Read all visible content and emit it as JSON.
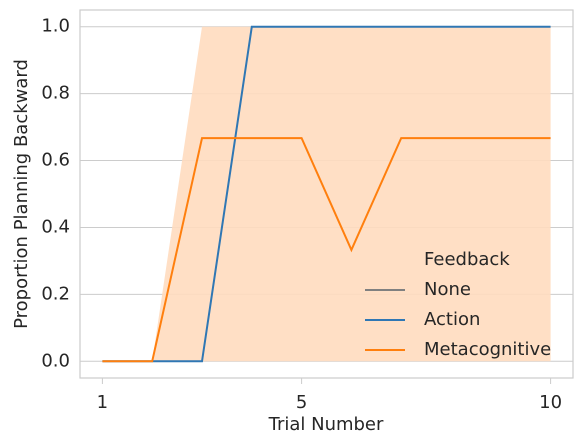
{
  "chart_data": {
    "type": "line",
    "x_label": "Trial Number",
    "y_label": "Proportion Planning Backward",
    "x": [
      1,
      2,
      3,
      4,
      5,
      6,
      7,
      8,
      9,
      10
    ],
    "xlim": [
      0.55,
      10.45
    ],
    "xticks": [
      1,
      5,
      10
    ],
    "ylim": [
      -0.05,
      1.05
    ],
    "yticks": [
      {
        "value": 0,
        "label": "0.0"
      },
      {
        "value": 0.2,
        "label": "0.2"
      },
      {
        "value": 0.4,
        "label": "0.4"
      },
      {
        "value": 0.6,
        "label": "0.6"
      },
      {
        "value": 0.8,
        "label": "0.8"
      },
      {
        "value": 1,
        "label": "1.0"
      }
    ],
    "grid": true,
    "legend_title": "Feedback",
    "legend_position": "lower right",
    "series": [
      {
        "name": "None",
        "color": "#808080",
        "values": [
          null,
          null,
          null,
          null,
          null,
          null,
          null,
          null,
          null,
          null
        ]
      },
      {
        "name": "Action",
        "color": "#2f77b4",
        "values": [
          0,
          0,
          0,
          1,
          1,
          1,
          1,
          1,
          1,
          1
        ]
      },
      {
        "name": "Metacognitive",
        "color": "#ff7f0e",
        "band_color": "#ffdcbf",
        "values": [
          0,
          0,
          0.667,
          0.667,
          0.667,
          0.333,
          0.667,
          0.667,
          0.667,
          0.667
        ],
        "ci_lower": [
          0,
          0,
          0,
          0,
          0,
          0,
          0,
          0,
          0,
          0
        ],
        "ci_upper": [
          0,
          0,
          1,
          1,
          1,
          1,
          1,
          1,
          1,
          1
        ]
      }
    ]
  }
}
